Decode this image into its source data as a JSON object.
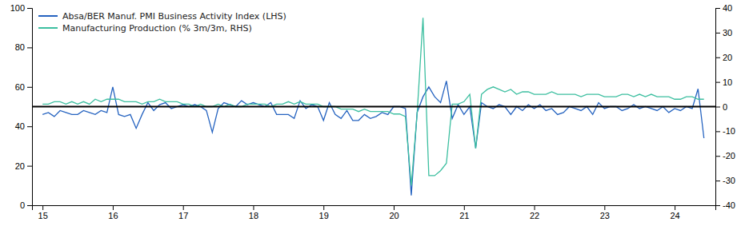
{
  "chart_data": {
    "type": "line",
    "x": [
      15.0,
      15.083,
      15.167,
      15.25,
      15.333,
      15.417,
      15.5,
      15.583,
      15.667,
      15.75,
      15.833,
      15.917,
      16.0,
      16.083,
      16.167,
      16.25,
      16.333,
      16.417,
      16.5,
      16.583,
      16.667,
      16.75,
      16.833,
      16.917,
      17.0,
      17.083,
      17.167,
      17.25,
      17.333,
      17.417,
      17.5,
      17.583,
      17.667,
      17.75,
      17.833,
      17.917,
      18.0,
      18.083,
      18.167,
      18.25,
      18.333,
      18.417,
      18.5,
      18.583,
      18.667,
      18.75,
      18.833,
      18.917,
      19.0,
      19.083,
      19.167,
      19.25,
      19.333,
      19.417,
      19.5,
      19.583,
      19.667,
      19.75,
      19.833,
      19.917,
      20.0,
      20.083,
      20.167,
      20.25,
      20.333,
      20.417,
      20.5,
      20.583,
      20.667,
      20.75,
      20.833,
      20.917,
      21.0,
      21.083,
      21.167,
      21.25,
      21.333,
      21.417,
      21.5,
      21.583,
      21.667,
      21.75,
      21.833,
      21.917,
      22.0,
      22.083,
      22.167,
      22.25,
      22.333,
      22.417,
      22.5,
      22.583,
      22.667,
      22.75,
      22.833,
      22.917,
      23.0,
      23.083,
      23.167,
      23.25,
      23.333,
      23.417,
      23.5,
      23.583,
      23.667,
      23.75,
      23.833,
      23.917,
      24.0,
      24.083,
      24.167,
      24.25,
      24.333,
      24.417
    ],
    "series": [
      {
        "name": "Absa/BER Manuf. PMI Business Activity Index (LHS)",
        "color": "#2563c0",
        "values": [
          46,
          47,
          45,
          48,
          47,
          46,
          46,
          48,
          47,
          46,
          48,
          47,
          60,
          46,
          45,
          46,
          39,
          46,
          52,
          48,
          51,
          52,
          49,
          50,
          51,
          50,
          51,
          50,
          48,
          37,
          49,
          52,
          51,
          50,
          53,
          51,
          52,
          51,
          50,
          52,
          46,
          46,
          46,
          44,
          53,
          49,
          51,
          50,
          43,
          52,
          46,
          44,
          48,
          43,
          43,
          46,
          44,
          45,
          47,
          46,
          50,
          50,
          49,
          5,
          47,
          55,
          60,
          55,
          52,
          63,
          44,
          51,
          46,
          50,
          29,
          52,
          50,
          49,
          51,
          50,
          46,
          50,
          48,
          51,
          49,
          51,
          48,
          49,
          46,
          47,
          50,
          49,
          48,
          50,
          46,
          52,
          49,
          50,
          50,
          48,
          49,
          51,
          49,
          50,
          49,
          48,
          50,
          47,
          49,
          48,
          50,
          49,
          59,
          34
        ]
      },
      {
        "name": "Manufacturing Production (% 3m/3m, RHS)",
        "color": "#3dbfa0",
        "axis": "y2",
        "values": [
          1,
          1,
          2,
          2,
          1,
          2,
          1,
          2,
          1,
          3,
          2,
          3,
          3,
          3,
          2,
          2,
          2,
          1,
          2,
          2,
          3,
          2,
          2,
          2,
          1,
          1,
          0,
          1,
          0,
          0,
          1,
          0,
          1,
          0,
          0,
          1,
          1,
          1,
          1,
          0,
          1,
          1,
          2,
          1,
          2,
          1,
          1,
          1,
          0,
          0,
          0,
          -1,
          -1,
          -1,
          -2,
          -1,
          -2,
          -2,
          -2,
          -2,
          -3,
          -3,
          -4,
          -32,
          -3,
          36,
          -28,
          -28,
          -26,
          -23,
          1,
          1,
          2,
          5,
          -17,
          5,
          7,
          8,
          7,
          6,
          7,
          5,
          6,
          6,
          5,
          5,
          5,
          6,
          5,
          5,
          5,
          5,
          4,
          5,
          5,
          5,
          4,
          4,
          4,
          5,
          5,
          4,
          5,
          4,
          5,
          4,
          4,
          4,
          3,
          3,
          4,
          4,
          3,
          3
        ]
      }
    ],
    "xlim": [
      14.85,
      24.58
    ],
    "xticks": [
      15,
      16,
      17,
      18,
      19,
      20,
      21,
      22,
      23,
      24
    ],
    "ylim": [
      0,
      100
    ],
    "yticks": [
      0,
      20,
      40,
      60,
      80,
      100
    ],
    "y2lim": [
      -40,
      40
    ],
    "y2ticks": [
      -40,
      -30,
      -20,
      -10,
      0,
      10,
      20,
      30,
      40
    ],
    "reference_lines": [
      {
        "y": 50,
        "color": "#000000"
      }
    ],
    "legend": "upper left",
    "grid": false
  }
}
